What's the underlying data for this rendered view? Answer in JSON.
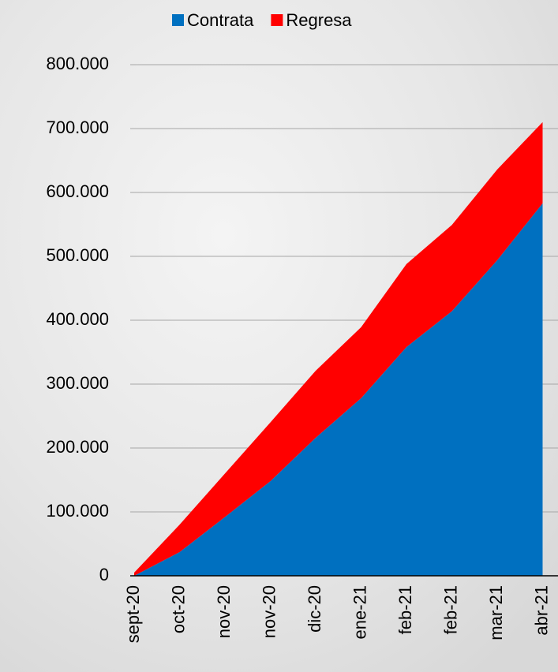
{
  "chart_data": {
    "type": "stacked_area",
    "categories": [
      "sept-20",
      "oct-20",
      "nov-20",
      "nov-20",
      "dic-20",
      "ene-21",
      "feb-21",
      "feb-21",
      "mar-21",
      "abr-21"
    ],
    "series": [
      {
        "name": "Contrata",
        "color": "#0070c0",
        "values": [
          0,
          37000,
          92000,
          148000,
          216000,
          278000,
          358000,
          414000,
          494000,
          583000
        ]
      },
      {
        "name": "Regresa",
        "color": "#ff0000",
        "values": [
          5000,
          43000,
          68000,
          92000,
          105000,
          111000,
          130000,
          135000,
          142000,
          127000
        ]
      }
    ],
    "ylim": [
      0,
      800000
    ],
    "yticks": [
      0,
      {
        "value": 100000,
        "label": "100.000"
      },
      {
        "value": 200000,
        "label": "200.000"
      },
      {
        "value": 300000,
        "label": "300.000"
      },
      {
        "value": 400000,
        "label": "400.000"
      },
      {
        "value": 500000,
        "label": "500.000"
      },
      {
        "value": 600000,
        "label": "600.000"
      },
      {
        "value": 700000,
        "label": "700.000"
      },
      {
        "value": 800000,
        "label": "800.000"
      }
    ],
    "grid": true,
    "legend": "top"
  }
}
